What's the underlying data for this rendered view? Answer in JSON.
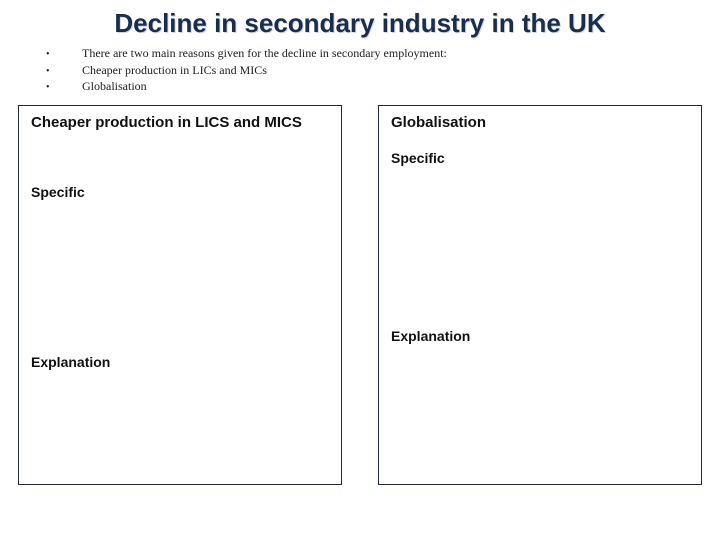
{
  "title": "Decline in secondary industry in the UK",
  "bullets": {
    "b0": "There are two main reasons given for the decline in secondary employment:",
    "b1": "Cheaper production in LICs and MICs",
    "b2": "Globalisation"
  },
  "left": {
    "title": "Cheaper production in LICS and MICS",
    "specific": "Specific",
    "explanation": "Explanation"
  },
  "right": {
    "title": "Globalisation",
    "specific": "Specific",
    "explanation": "Explanation"
  },
  "colors": {
    "title_color": "#1a2d4d",
    "box_border": "#1f2a3a",
    "text": "#111111",
    "background": "#ffffff"
  }
}
